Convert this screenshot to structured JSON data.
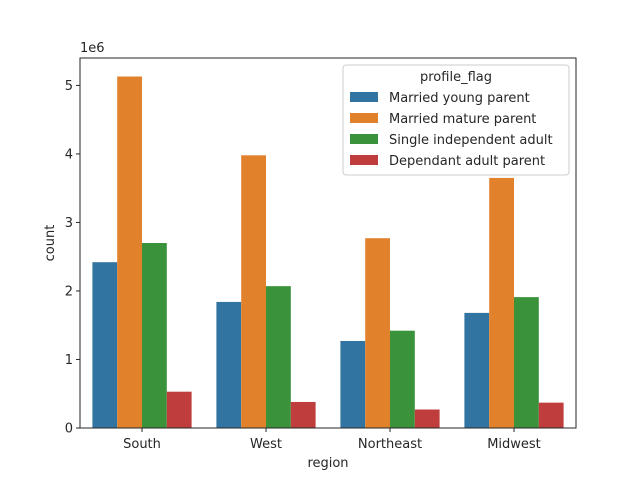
{
  "chart_data": {
    "type": "bar",
    "xlabel": "region",
    "ylabel": "count",
    "y_offset_label": "1e6",
    "categories": [
      "South",
      "West",
      "Northeast",
      "Midwest"
    ],
    "ylim": [
      0,
      5.4
    ],
    "yticks": [
      0,
      1,
      2,
      3,
      4,
      5
    ],
    "y_scale_multiplier": 1000000,
    "legend": {
      "title": "profile_flag",
      "placement": "top-right"
    },
    "series": [
      {
        "name": "Married young parent",
        "color": "#3274a1",
        "values": [
          2.42,
          1.84,
          1.27,
          1.68
        ]
      },
      {
        "name": "Married mature parent",
        "color": "#e1812c",
        "values": [
          5.13,
          3.98,
          2.77,
          3.65
        ]
      },
      {
        "name": "Single independent adult",
        "color": "#3a923a",
        "values": [
          2.7,
          2.07,
          1.42,
          1.91
        ]
      },
      {
        "name": "Dependant adult parent",
        "color": "#c03d3e",
        "values": [
          0.53,
          0.38,
          0.27,
          0.37
        ]
      }
    ]
  }
}
